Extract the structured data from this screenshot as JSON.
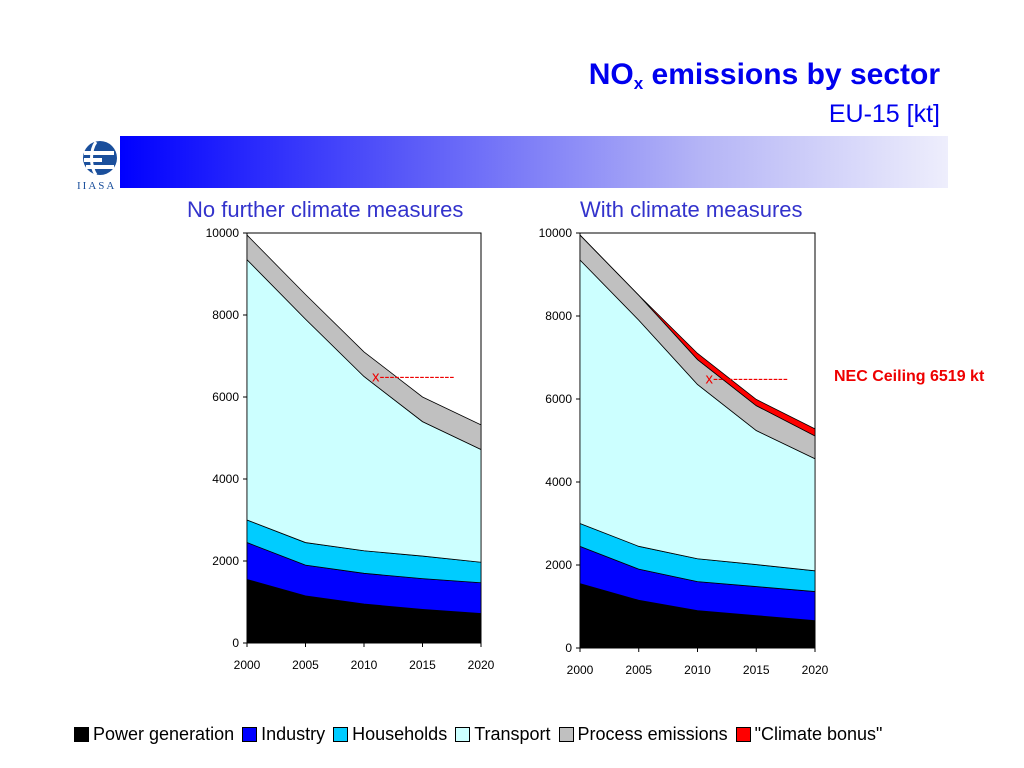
{
  "header": {
    "title_main": "NO",
    "title_sub": "x",
    "title_rest": " emissions by sector",
    "subtitle": "EU-15 [kt]"
  },
  "logo": {
    "icon": "globe-icon",
    "text": "IIASA"
  },
  "colors": {
    "Power generation": "#000000",
    "Industry": "#0000ff",
    "Households": "#00ccff",
    "Transport": "#ccffff",
    "Process emissions": "#c0c0c0",
    "\"Climate bonus\"": "#ff0000"
  },
  "legend": [
    "Power generation",
    "Industry",
    "Households",
    "Transport",
    "Process emissions",
    "\"Climate bonus\""
  ],
  "nec_label": "NEC Ceiling 6519 kt",
  "chart_data": [
    {
      "type": "area",
      "stacked": true,
      "title": "No further climate measures",
      "x": [
        2000,
        2005,
        2010,
        2015,
        2020
      ],
      "ylim": [
        0,
        10000
      ],
      "yticks": [
        0,
        2000,
        4000,
        6000,
        8000,
        10000
      ],
      "series": [
        {
          "name": "Power generation",
          "values": [
            1550,
            1150,
            950,
            820,
            720
          ]
        },
        {
          "name": "Industry",
          "values": [
            900,
            750,
            750,
            750,
            750
          ]
        },
        {
          "name": "Households",
          "values": [
            550,
            550,
            550,
            550,
            500
          ]
        },
        {
          "name": "Transport",
          "values": [
            6350,
            5450,
            4250,
            3280,
            2750
          ]
        },
        {
          "name": "Process emissions",
          "values": [
            600,
            600,
            600,
            600,
            600
          ]
        }
      ],
      "annotation": {
        "text": "x---------------",
        "x": 2010,
        "y": 6519
      }
    },
    {
      "type": "area",
      "stacked": true,
      "title": "With climate measures",
      "x": [
        2000,
        2005,
        2010,
        2015,
        2020
      ],
      "ylim": [
        0,
        10000
      ],
      "yticks": [
        0,
        2000,
        4000,
        6000,
        8000,
        10000
      ],
      "series": [
        {
          "name": "Power generation",
          "values": [
            1550,
            1150,
            900,
            780,
            660
          ]
        },
        {
          "name": "Industry",
          "values": [
            900,
            750,
            700,
            700,
            700
          ]
        },
        {
          "name": "Households",
          "values": [
            550,
            550,
            550,
            530,
            500
          ]
        },
        {
          "name": "Transport",
          "values": [
            6350,
            5450,
            4200,
            3230,
            2700
          ]
        },
        {
          "name": "Process emissions",
          "values": [
            600,
            600,
            600,
            600,
            550
          ]
        },
        {
          "name": "\"Climate bonus\"",
          "values": [
            0,
            0,
            150,
            150,
            170
          ]
        }
      ],
      "annotation": {
        "text": "x---------------",
        "x": 2010,
        "y": 6519
      }
    }
  ]
}
